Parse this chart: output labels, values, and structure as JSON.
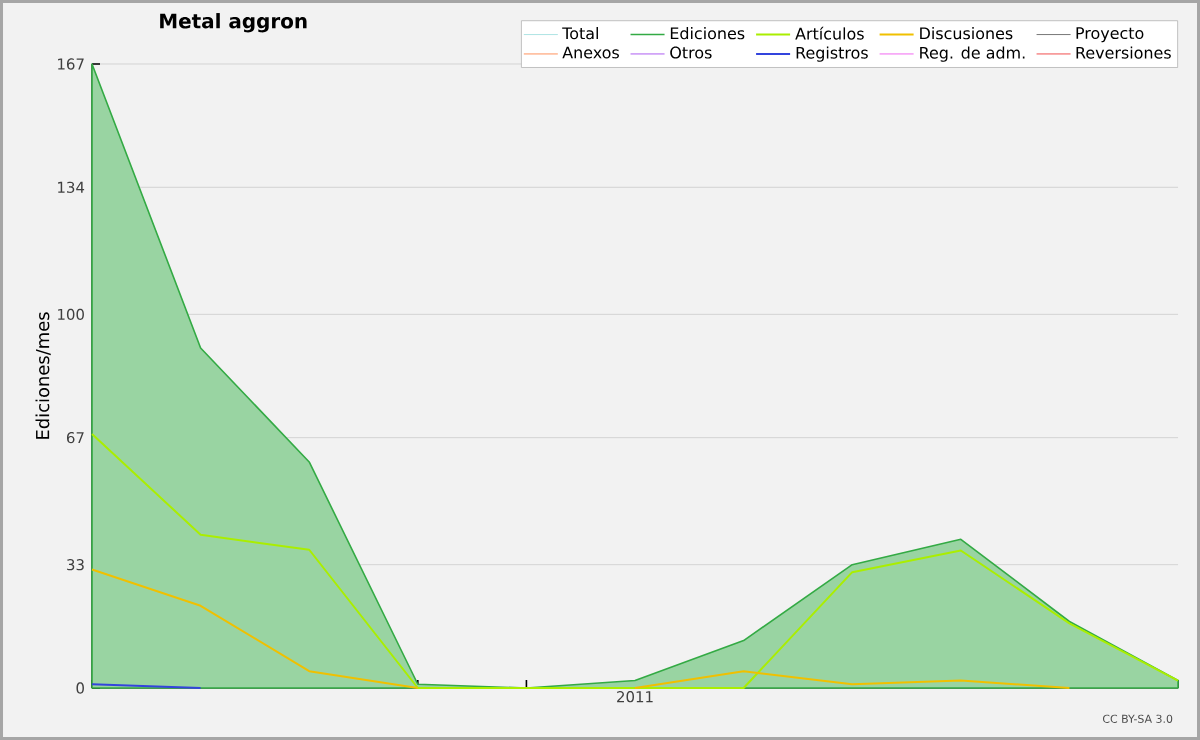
{
  "chart_data": {
    "type": "line",
    "title": "Metal aggron",
    "ylabel": "Ediciones/mes",
    "categories": [
      null,
      null,
      null,
      null,
      null,
      "2011",
      null,
      null,
      null,
      null,
      null
    ],
    "ylim": [
      0,
      167
    ],
    "yticks": [
      0,
      33,
      67,
      100,
      134,
      167
    ],
    "grid": "y",
    "legend": "top right",
    "annotations": [
      "CC BY-SA 3.0"
    ],
    "series": [
      {
        "name": "Total",
        "color": "#99dddd",
        "values": [
          null,
          null,
          null,
          null,
          null,
          null,
          null,
          null,
          null,
          null,
          null
        ]
      },
      {
        "name": "Ediciones",
        "type": "area",
        "color": "#33aa44",
        "values": [
          167,
          91,
          60.5,
          1,
          0,
          2,
          12.7,
          33,
          39.8,
          17.8,
          2
        ]
      },
      {
        "name": "Artículos",
        "color": "#aaee00",
        "values": [
          68,
          41,
          37,
          0,
          0,
          0,
          0,
          31,
          36.8,
          17.3,
          2
        ]
      },
      {
        "name": "Discusiones",
        "color": "#f0c000",
        "values": [
          31.7,
          22,
          4.5,
          0,
          null,
          0,
          4.5,
          1,
          2,
          0,
          null
        ]
      },
      {
        "name": "Proyecto",
        "color": "#555555",
        "values": [
          null,
          null,
          null,
          null,
          null,
          null,
          null,
          null,
          null,
          null,
          null
        ]
      },
      {
        "name": "Anexos",
        "color": "#ff7733",
        "values": [
          null,
          null,
          null,
          null,
          null,
          null,
          null,
          null,
          null,
          null,
          null
        ]
      },
      {
        "name": "Otros",
        "color": "#9933ee",
        "values": [
          null,
          null,
          null,
          null,
          null,
          null,
          null,
          null,
          null,
          null,
          null
        ]
      },
      {
        "name": "Registros",
        "color": "#3344dd",
        "values": [
          1,
          0,
          null,
          null,
          null,
          null,
          null,
          null,
          null,
          null,
          null
        ]
      },
      {
        "name": "Reg. de adm.",
        "color": "#ee44ee",
        "values": [
          null,
          null,
          null,
          null,
          null,
          null,
          null,
          null,
          null,
          null,
          null
        ]
      },
      {
        "name": "Reversiones",
        "color": "#ee2222",
        "values": [
          null,
          null,
          null,
          null,
          null,
          null,
          null,
          null,
          null,
          null,
          null
        ]
      }
    ]
  }
}
